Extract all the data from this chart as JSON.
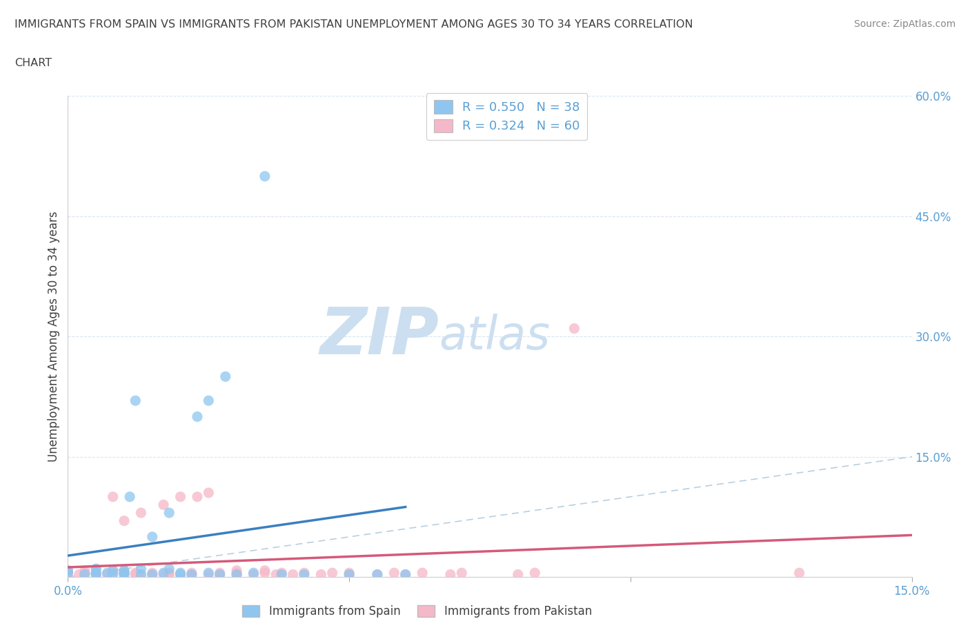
{
  "title_line1": "IMMIGRANTS FROM SPAIN VS IMMIGRANTS FROM PAKISTAN UNEMPLOYMENT AMONG AGES 30 TO 34 YEARS CORRELATION",
  "title_line2": "CHART",
  "source": "Source: ZipAtlas.com",
  "ylabel": "Unemployment Among Ages 30 to 34 years",
  "xlim": [
    0.0,
    0.15
  ],
  "ylim": [
    0.0,
    0.6
  ],
  "R_spain": 0.55,
  "N_spain": 38,
  "R_pakistan": 0.324,
  "N_pakistan": 60,
  "color_spain": "#8ec6f0",
  "color_pakistan": "#f5b8c8",
  "line_color_spain": "#3a7fc1",
  "line_color_pakistan": "#d45a7a",
  "diagonal_color": "#b8cfe0",
  "watermark_zip": "ZIP",
  "watermark_atlas": "atlas",
  "watermark_color": "#ccdff0",
  "title_color": "#404040",
  "axis_color": "#5a9fd4",
  "grid_color": "#d8e4f0",
  "background_color": "#ffffff",
  "spain_x": [
    0.0,
    0.0,
    0.003,
    0.005,
    0.005,
    0.005,
    0.007,
    0.008,
    0.008,
    0.01,
    0.01,
    0.01,
    0.01,
    0.011,
    0.012,
    0.013,
    0.013,
    0.015,
    0.015,
    0.017,
    0.018,
    0.018,
    0.02,
    0.02,
    0.022,
    0.023,
    0.025,
    0.025,
    0.027,
    0.028,
    0.03,
    0.033,
    0.035,
    0.038,
    0.042,
    0.05,
    0.055,
    0.06
  ],
  "spain_y": [
    0.005,
    0.008,
    0.003,
    0.005,
    0.01,
    0.003,
    0.005,
    0.003,
    0.008,
    0.005,
    0.008,
    0.003,
    0.005,
    0.1,
    0.22,
    0.003,
    0.01,
    0.003,
    0.05,
    0.005,
    0.01,
    0.08,
    0.003,
    0.005,
    0.003,
    0.2,
    0.005,
    0.22,
    0.003,
    0.25,
    0.003,
    0.005,
    0.5,
    0.003,
    0.003,
    0.003,
    0.003,
    0.003
  ],
  "pakistan_x": [
    0.0,
    0.0,
    0.0,
    0.002,
    0.003,
    0.003,
    0.005,
    0.005,
    0.005,
    0.007,
    0.008,
    0.008,
    0.008,
    0.01,
    0.01,
    0.01,
    0.01,
    0.012,
    0.012,
    0.013,
    0.013,
    0.015,
    0.015,
    0.017,
    0.017,
    0.018,
    0.018,
    0.02,
    0.02,
    0.022,
    0.022,
    0.023,
    0.025,
    0.025,
    0.027,
    0.027,
    0.03,
    0.03,
    0.03,
    0.033,
    0.035,
    0.035,
    0.037,
    0.038,
    0.04,
    0.042,
    0.045,
    0.047,
    0.05,
    0.05,
    0.055,
    0.058,
    0.06,
    0.063,
    0.068,
    0.07,
    0.08,
    0.083,
    0.09,
    0.13
  ],
  "pakistan_y": [
    0.003,
    0.005,
    0.008,
    0.003,
    0.005,
    0.008,
    0.003,
    0.005,
    0.01,
    0.003,
    0.005,
    0.008,
    0.1,
    0.003,
    0.005,
    0.008,
    0.07,
    0.003,
    0.005,
    0.003,
    0.08,
    0.003,
    0.005,
    0.003,
    0.09,
    0.003,
    0.005,
    0.003,
    0.1,
    0.003,
    0.005,
    0.1,
    0.003,
    0.105,
    0.003,
    0.005,
    0.003,
    0.005,
    0.008,
    0.003,
    0.005,
    0.008,
    0.003,
    0.005,
    0.003,
    0.005,
    0.003,
    0.005,
    0.003,
    0.005,
    0.003,
    0.005,
    0.003,
    0.005,
    0.003,
    0.005,
    0.003,
    0.005,
    0.31,
    0.005
  ]
}
